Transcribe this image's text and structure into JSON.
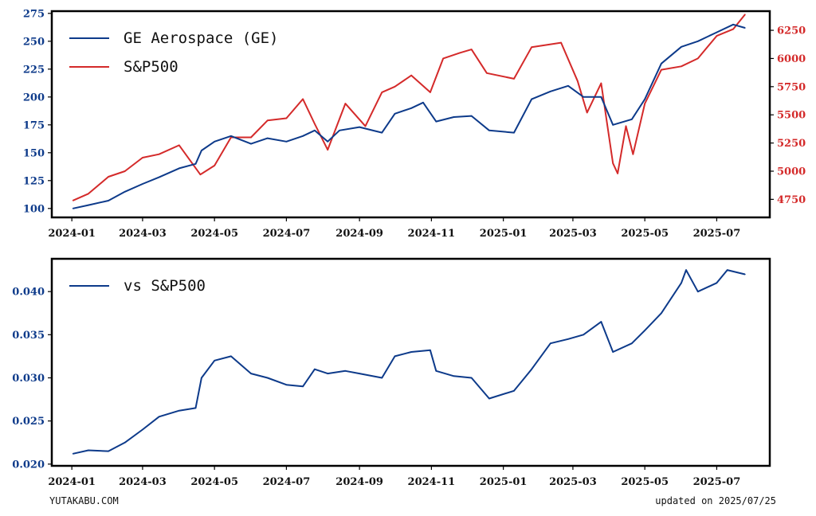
{
  "colors": {
    "primary": "#0d3a8a",
    "secondary": "#d42a2a",
    "frame": "#000000"
  },
  "footer": {
    "source": "YUTAKABU.COM",
    "updated": "updated on 2025/07/25"
  },
  "chart_data": [
    {
      "type": "line",
      "x_ticks": [
        "2024-01",
        "2024-03",
        "2024-05",
        "2024-07",
        "2024-09",
        "2024-11",
        "2025-01",
        "2025-03",
        "2025-05",
        "2025-07"
      ],
      "legend_placement": "top-left",
      "grid": false,
      "ylim_left": [
        92,
        277
      ],
      "ylim_right": [
        4590,
        6420
      ],
      "y_ticks_left": [
        100,
        125,
        150,
        175,
        200,
        225,
        250,
        275
      ],
      "y_ticks_right": [
        4750,
        5000,
        5250,
        5500,
        5750,
        6000,
        6250
      ],
      "series": [
        {
          "name": "GE Aerospace (GE)",
          "axis": "left",
          "color": "#0d3a8a",
          "points": [
            [
              "2024-01-02",
              100
            ],
            [
              "2024-01-15",
              103
            ],
            [
              "2024-02-01",
              107
            ],
            [
              "2024-02-15",
              115
            ],
            [
              "2024-03-01",
              122
            ],
            [
              "2024-03-15",
              128
            ],
            [
              "2024-04-01",
              136
            ],
            [
              "2024-04-15",
              140
            ],
            [
              "2024-04-20",
              152
            ],
            [
              "2024-05-01",
              160
            ],
            [
              "2024-05-15",
              165
            ],
            [
              "2024-06-01",
              158
            ],
            [
              "2024-06-15",
              163
            ],
            [
              "2024-07-01",
              160
            ],
            [
              "2024-07-15",
              165
            ],
            [
              "2024-07-25",
              170
            ],
            [
              "2024-08-05",
              160
            ],
            [
              "2024-08-15",
              170
            ],
            [
              "2024-09-01",
              173
            ],
            [
              "2024-09-20",
              168
            ],
            [
              "2024-10-01",
              185
            ],
            [
              "2024-10-15",
              190
            ],
            [
              "2024-10-25",
              195
            ],
            [
              "2024-11-05",
              178
            ],
            [
              "2024-11-20",
              182
            ],
            [
              "2024-12-05",
              183
            ],
            [
              "2024-12-20",
              170
            ],
            [
              "2025-01-10",
              168
            ],
            [
              "2025-01-25",
              198
            ],
            [
              "2025-02-10",
              205
            ],
            [
              "2025-02-25",
              210
            ],
            [
              "2025-03-10",
              200
            ],
            [
              "2025-03-25",
              200
            ],
            [
              "2025-04-04",
              175
            ],
            [
              "2025-04-20",
              180
            ],
            [
              "2025-05-01",
              198
            ],
            [
              "2025-05-15",
              230
            ],
            [
              "2025-06-01",
              245
            ],
            [
              "2025-06-15",
              250
            ],
            [
              "2025-07-01",
              258
            ],
            [
              "2025-07-15",
              265
            ],
            [
              "2025-07-25",
              262
            ]
          ]
        },
        {
          "name": "S&P500",
          "axis": "right",
          "color": "#d42a2a",
          "points": [
            [
              "2024-01-02",
              4740
            ],
            [
              "2024-01-15",
              4800
            ],
            [
              "2024-02-01",
              4950
            ],
            [
              "2024-02-15",
              5000
            ],
            [
              "2024-03-01",
              5120
            ],
            [
              "2024-03-15",
              5150
            ],
            [
              "2024-04-01",
              5230
            ],
            [
              "2024-04-19",
              4970
            ],
            [
              "2024-05-01",
              5050
            ],
            [
              "2024-05-15",
              5300
            ],
            [
              "2024-06-01",
              5300
            ],
            [
              "2024-06-15",
              5450
            ],
            [
              "2024-07-01",
              5470
            ],
            [
              "2024-07-15",
              5640
            ],
            [
              "2024-07-25",
              5420
            ],
            [
              "2024-08-05",
              5190
            ],
            [
              "2024-08-20",
              5600
            ],
            [
              "2024-09-06",
              5400
            ],
            [
              "2024-09-20",
              5700
            ],
            [
              "2024-10-01",
              5750
            ],
            [
              "2024-10-15",
              5850
            ],
            [
              "2024-10-31",
              5700
            ],
            [
              "2024-11-11",
              6000
            ],
            [
              "2024-11-25",
              6050
            ],
            [
              "2024-12-05",
              6080
            ],
            [
              "2024-12-18",
              5870
            ],
            [
              "2025-01-10",
              5820
            ],
            [
              "2025-01-25",
              6100
            ],
            [
              "2025-02-19",
              6140
            ],
            [
              "2025-03-05",
              5800
            ],
            [
              "2025-03-13",
              5520
            ],
            [
              "2025-03-25",
              5780
            ],
            [
              "2025-04-04",
              5070
            ],
            [
              "2025-04-08",
              4980
            ],
            [
              "2025-04-15",
              5400
            ],
            [
              "2025-04-21",
              5150
            ],
            [
              "2025-05-01",
              5600
            ],
            [
              "2025-05-15",
              5900
            ],
            [
              "2025-06-01",
              5930
            ],
            [
              "2025-06-15",
              6000
            ],
            [
              "2025-07-01",
              6200
            ],
            [
              "2025-07-15",
              6260
            ],
            [
              "2025-07-25",
              6390
            ]
          ]
        }
      ]
    },
    {
      "type": "line",
      "x_ticks": [
        "2024-01",
        "2024-03",
        "2024-05",
        "2024-07",
        "2024-09",
        "2024-11",
        "2025-01",
        "2025-03",
        "2025-05",
        "2025-07"
      ],
      "legend_placement": "top-left",
      "grid": false,
      "ylim": [
        0.0198,
        0.0438
      ],
      "y_ticks": [
        "0.020",
        "0.025",
        "0.030",
        "0.035",
        "0.040"
      ],
      "series": [
        {
          "name": "vs S&P500",
          "color": "#0d3a8a",
          "points": [
            [
              "2024-01-02",
              0.0212
            ],
            [
              "2024-01-15",
              0.0216
            ],
            [
              "2024-02-01",
              0.0215
            ],
            [
              "2024-02-15",
              0.0225
            ],
            [
              "2024-03-01",
              0.024
            ],
            [
              "2024-03-15",
              0.0255
            ],
            [
              "2024-04-01",
              0.0262
            ],
            [
              "2024-04-15",
              0.0265
            ],
            [
              "2024-04-20",
              0.03
            ],
            [
              "2024-05-01",
              0.032
            ],
            [
              "2024-05-15",
              0.0325
            ],
            [
              "2024-06-01",
              0.0305
            ],
            [
              "2024-06-15",
              0.03
            ],
            [
              "2024-07-01",
              0.0292
            ],
            [
              "2024-07-15",
              0.029
            ],
            [
              "2024-07-25",
              0.031
            ],
            [
              "2024-08-05",
              0.0305
            ],
            [
              "2024-08-20",
              0.0308
            ],
            [
              "2024-09-01",
              0.0305
            ],
            [
              "2024-09-20",
              0.03
            ],
            [
              "2024-10-01",
              0.0325
            ],
            [
              "2024-10-15",
              0.033
            ],
            [
              "2024-10-31",
              0.0332
            ],
            [
              "2024-11-05",
              0.0308
            ],
            [
              "2024-11-20",
              0.0302
            ],
            [
              "2024-12-05",
              0.03
            ],
            [
              "2024-12-20",
              0.0276
            ],
            [
              "2025-01-10",
              0.0285
            ],
            [
              "2025-01-25",
              0.031
            ],
            [
              "2025-02-10",
              0.034
            ],
            [
              "2025-02-25",
              0.0345
            ],
            [
              "2025-03-10",
              0.035
            ],
            [
              "2025-03-25",
              0.0365
            ],
            [
              "2025-04-04",
              0.033
            ],
            [
              "2025-04-20",
              0.034
            ],
            [
              "2025-05-01",
              0.0355
            ],
            [
              "2025-05-15",
              0.0375
            ],
            [
              "2025-06-01",
              0.041
            ],
            [
              "2025-06-05",
              0.0425
            ],
            [
              "2025-06-15",
              0.04
            ],
            [
              "2025-07-01",
              0.041
            ],
            [
              "2025-07-10",
              0.0425
            ],
            [
              "2025-07-25",
              0.042
            ]
          ]
        }
      ]
    }
  ]
}
